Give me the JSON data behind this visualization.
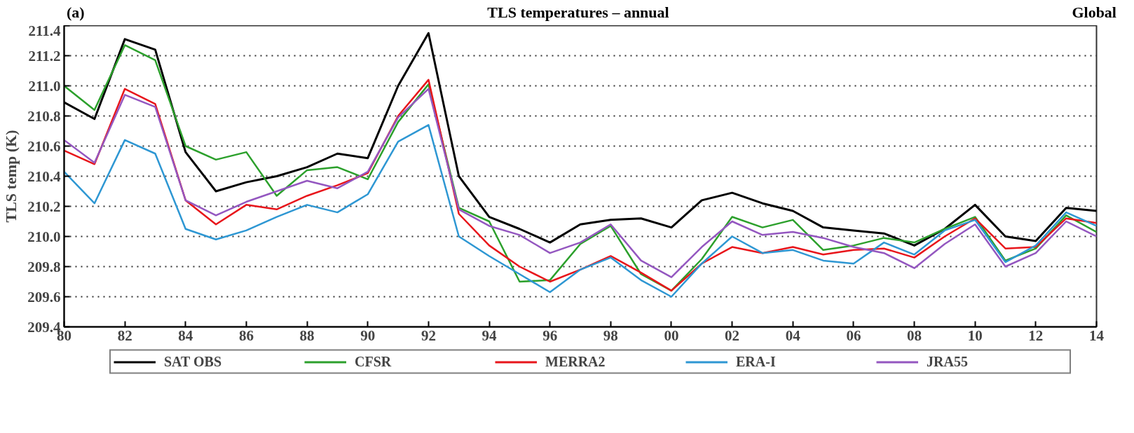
{
  "chart_data": {
    "type": "line",
    "title": "TLS temperatures – annual",
    "ylabel": "TLS temp (K)",
    "annotations": [
      "(a)",
      "Global"
    ],
    "x": [
      1980,
      1981,
      1982,
      1983,
      1984,
      1985,
      1986,
      1987,
      1988,
      1989,
      1990,
      1991,
      1992,
      1993,
      1994,
      1995,
      1996,
      1997,
      1998,
      1999,
      2000,
      2001,
      2002,
      2003,
      2004,
      2005,
      2006,
      2007,
      2008,
      2009,
      2010,
      2011,
      2012,
      2013,
      2014
    ],
    "series": [
      {
        "name": "SAT OBS",
        "color": "#000000",
        "values": [
          210.89,
          210.78,
          211.31,
          211.24,
          210.56,
          210.3,
          210.36,
          210.4,
          210.46,
          210.55,
          210.52,
          211.0,
          211.35,
          210.4,
          210.13,
          210.05,
          209.96,
          210.08,
          210.11,
          210.12,
          210.06,
          210.24,
          210.29,
          210.22,
          210.17,
          210.06,
          210.04,
          210.02,
          209.94,
          210.05,
          210.21,
          210.0,
          209.97,
          210.19,
          210.17
        ]
      },
      {
        "name": "CFSR",
        "color": "#2ca02c",
        "values": [
          211.0,
          210.84,
          211.27,
          211.17,
          210.6,
          210.51,
          210.56,
          210.27,
          210.44,
          210.46,
          210.38,
          210.76,
          211.01,
          210.19,
          210.1,
          209.7,
          209.71,
          209.95,
          210.07,
          209.75,
          209.64,
          209.85,
          210.13,
          210.06,
          210.11,
          209.91,
          209.94,
          209.99,
          209.96,
          210.05,
          210.13,
          209.84,
          209.92,
          210.14,
          210.03
        ]
      },
      {
        "name": "MERRA2",
        "color": "#e8151b",
        "values": [
          210.57,
          210.48,
          210.98,
          210.88,
          210.24,
          210.08,
          210.21,
          210.18,
          210.27,
          210.34,
          210.42,
          210.8,
          211.04,
          210.15,
          209.94,
          209.8,
          209.7,
          209.78,
          209.87,
          209.76,
          209.64,
          209.82,
          209.93,
          209.89,
          209.93,
          209.88,
          209.91,
          209.92,
          209.86,
          210.0,
          210.12,
          209.92,
          209.93,
          210.12,
          210.09
        ]
      },
      {
        "name": "ERA-I",
        "color": "#2e97d3",
        "values": [
          210.43,
          210.22,
          210.64,
          210.55,
          210.05,
          209.98,
          210.04,
          210.13,
          210.21,
          210.16,
          210.28,
          210.63,
          210.74,
          210.0,
          209.87,
          209.75,
          209.63,
          209.78,
          209.86,
          209.71,
          209.6,
          209.82,
          210.0,
          209.89,
          209.91,
          209.84,
          209.82,
          209.96,
          209.88,
          210.04,
          210.11,
          209.83,
          209.94,
          210.16,
          210.07
        ]
      },
      {
        "name": "JRA55",
        "color": "#9457c0",
        "values": [
          210.64,
          210.49,
          210.94,
          210.86,
          210.24,
          210.14,
          210.23,
          210.3,
          210.37,
          210.32,
          210.43,
          210.79,
          210.98,
          210.18,
          210.07,
          210.01,
          209.89,
          209.96,
          210.08,
          209.84,
          209.73,
          209.93,
          210.1,
          210.01,
          210.03,
          209.99,
          209.93,
          209.89,
          209.79,
          209.95,
          210.08,
          209.8,
          209.89,
          210.1,
          210.0
        ]
      }
    ],
    "xlim": [
      1980,
      2014
    ],
    "ylim": [
      209.4,
      211.4
    ],
    "xticks": [
      {
        "value": 1980,
        "label": "80"
      },
      {
        "value": 1982,
        "label": "82"
      },
      {
        "value": 1984,
        "label": "84"
      },
      {
        "value": 1986,
        "label": "86"
      },
      {
        "value": 1988,
        "label": "88"
      },
      {
        "value": 1990,
        "label": "90"
      },
      {
        "value": 1992,
        "label": "92"
      },
      {
        "value": 1994,
        "label": "94"
      },
      {
        "value": 1996,
        "label": "96"
      },
      {
        "value": 1998,
        "label": "98"
      },
      {
        "value": 2000,
        "label": "00"
      },
      {
        "value": 2002,
        "label": "02"
      },
      {
        "value": 2004,
        "label": "04"
      },
      {
        "value": 2006,
        "label": "06"
      },
      {
        "value": 2008,
        "label": "08"
      },
      {
        "value": 2010,
        "label": "10"
      },
      {
        "value": 2012,
        "label": "12"
      },
      {
        "value": 2014,
        "label": "14"
      }
    ],
    "yticks": [
      209.4,
      209.6,
      209.8,
      {
        "value": 210.0,
        "label": "210.0"
      },
      210.2,
      210.4,
      210.6,
      210.8,
      {
        "value": 211.0,
        "label": "211.0"
      },
      211.2,
      211.4
    ],
    "grid": "y",
    "legend": "bottom",
    "line_style": "solid",
    "marker": "none"
  }
}
